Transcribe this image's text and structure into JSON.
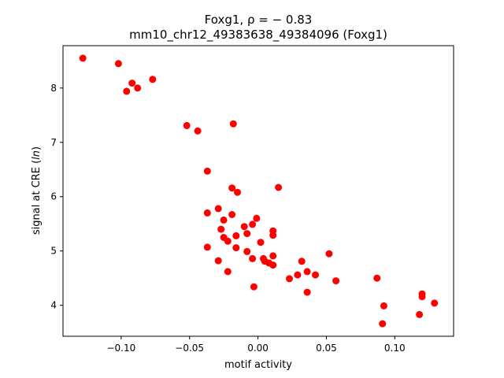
{
  "chart_data": {
    "type": "scatter",
    "title_line1": "Foxg1, ρ = − 0.83",
    "title_line2": "mm10_chr12_49383638_49384096 (Foxg1)",
    "xlabel": "motif activity",
    "ylabel_prefix": "signal at CRE (",
    "ylabel_italic": "ln",
    "ylabel_suffix": ")",
    "xlim": [
      -0.1425,
      0.143
    ],
    "ylim": [
      3.43,
      8.78
    ],
    "x_ticks": [
      -0.1,
      -0.05,
      0.0,
      0.05,
      0.1
    ],
    "x_tick_labels": [
      "−0.10",
      "−0.05",
      "0.00",
      "0.05",
      "0.10"
    ],
    "y_ticks": [
      4,
      5,
      6,
      7,
      8
    ],
    "y_tick_labels": [
      "4",
      "5",
      "6",
      "7",
      "8"
    ],
    "grid": false,
    "marker_color": "#ff0000",
    "points": [
      {
        "x": -0.128,
        "y": 8.55
      },
      {
        "x": -0.102,
        "y": 8.45
      },
      {
        "x": -0.092,
        "y": 8.09
      },
      {
        "x": -0.088,
        "y": 8.0
      },
      {
        "x": -0.096,
        "y": 7.94
      },
      {
        "x": -0.077,
        "y": 8.16
      },
      {
        "x": -0.052,
        "y": 7.31
      },
      {
        "x": -0.044,
        "y": 7.21
      },
      {
        "x": -0.018,
        "y": 7.34
      },
      {
        "x": -0.037,
        "y": 6.47
      },
      {
        "x": -0.019,
        "y": 6.16
      },
      {
        "x": -0.015,
        "y": 6.08
      },
      {
        "x": 0.015,
        "y": 6.17
      },
      {
        "x": -0.029,
        "y": 5.78
      },
      {
        "x": -0.037,
        "y": 5.7
      },
      {
        "x": -0.019,
        "y": 5.67
      },
      {
        "x": -0.025,
        "y": 5.57
      },
      {
        "x": -0.001,
        "y": 5.6
      },
      {
        "x": -0.004,
        "y": 5.49
      },
      {
        "x": -0.01,
        "y": 5.45
      },
      {
        "x": -0.027,
        "y": 5.4
      },
      {
        "x": 0.011,
        "y": 5.37
      },
      {
        "x": -0.008,
        "y": 5.32
      },
      {
        "x": 0.011,
        "y": 5.29
      },
      {
        "x": -0.016,
        "y": 5.28
      },
      {
        "x": -0.025,
        "y": 5.25
      },
      {
        "x": -0.022,
        "y": 5.18
      },
      {
        "x": 0.002,
        "y": 5.16
      },
      {
        "x": -0.037,
        "y": 5.07
      },
      {
        "x": -0.016,
        "y": 5.06
      },
      {
        "x": -0.008,
        "y": 4.99
      },
      {
        "x": 0.052,
        "y": 4.95
      },
      {
        "x": 0.011,
        "y": 4.91
      },
      {
        "x": -0.004,
        "y": 4.86
      },
      {
        "x": 0.004,
        "y": 4.86
      },
      {
        "x": 0.005,
        "y": 4.81
      },
      {
        "x": -0.029,
        "y": 4.82
      },
      {
        "x": 0.008,
        "y": 4.78
      },
      {
        "x": 0.011,
        "y": 4.74
      },
      {
        "x": 0.032,
        "y": 4.81
      },
      {
        "x": -0.022,
        "y": 4.62
      },
      {
        "x": 0.036,
        "y": 4.62
      },
      {
        "x": 0.042,
        "y": 4.56
      },
      {
        "x": 0.029,
        "y": 4.56
      },
      {
        "x": 0.023,
        "y": 4.49
      },
      {
        "x": 0.057,
        "y": 4.45
      },
      {
        "x": 0.087,
        "y": 4.5
      },
      {
        "x": -0.003,
        "y": 4.34
      },
      {
        "x": 0.036,
        "y": 4.24
      },
      {
        "x": 0.12,
        "y": 4.21
      },
      {
        "x": 0.12,
        "y": 4.16
      },
      {
        "x": 0.129,
        "y": 4.04
      },
      {
        "x": 0.092,
        "y": 3.99
      },
      {
        "x": 0.118,
        "y": 3.83
      },
      {
        "x": 0.091,
        "y": 3.66
      }
    ]
  }
}
